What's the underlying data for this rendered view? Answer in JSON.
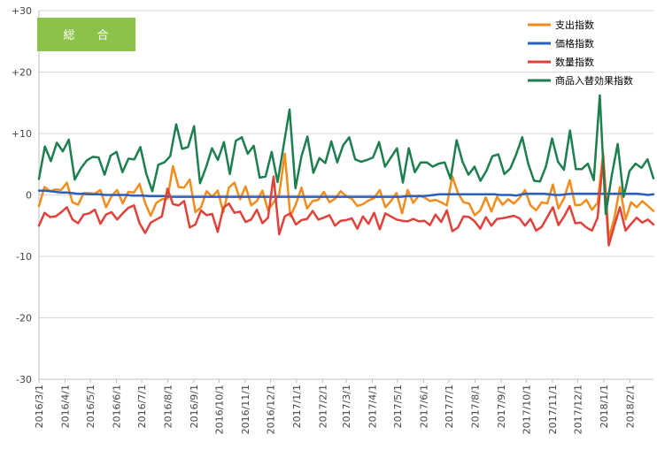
{
  "chart_data": {
    "type": "line",
    "badge": "総　合",
    "ylim": [
      -30,
      30
    ],
    "y_ticks": [
      {
        "value": 30,
        "label": "+30"
      },
      {
        "value": 20,
        "label": "+20"
      },
      {
        "value": 10,
        "label": "+10"
      },
      {
        "value": 0,
        "label": "0"
      },
      {
        "value": -10,
        "label": "-10"
      },
      {
        "value": -20,
        "label": "-20"
      },
      {
        "value": -30,
        "label": "-30"
      }
    ],
    "x_tick_labels": [
      "2016/3/1",
      "2016/4/1",
      "2016/5/1",
      "2016/6/1",
      "2016/7/1",
      "2016/8/1",
      "2016/9/1",
      "2016/10/1",
      "2016/11/1",
      "2016/12/1",
      "2017/1/1",
      "2017/2/1",
      "2017/3/1",
      "2017/4/1",
      "2017/5/1",
      "2017/6/1",
      "2017/7/1",
      "2017/8/1",
      "2017/9/1",
      "2017/10/1",
      "2017/11/1",
      "2017/12/1",
      "2018/1/1",
      "2018/2/1"
    ],
    "x_start": "2016/3/1",
    "x_end": "2018/3/1",
    "grid": true,
    "legend_position": "top-right",
    "series": [
      {
        "name": "支出指数",
        "color": "#F28C1C",
        "values": [
          -1.8,
          1.3,
          0.6,
          0.9,
          0.8,
          2.0,
          -1.2,
          -1.6,
          0.3,
          0.3,
          0.2,
          0.8,
          -2.0,
          -0.2,
          0.8,
          -1.4,
          0.5,
          0.4,
          1.8,
          -1.3,
          -3.4,
          -1.3,
          -0.7,
          -0.6,
          4.7,
          1.3,
          1.2,
          2.5,
          -2.8,
          -2.0,
          0.6,
          -0.3,
          0.7,
          -2.8,
          1.2,
          2.0,
          -0.7,
          1.4,
          -1.7,
          -1.0,
          0.7,
          -2.5,
          -1.2,
          0.1,
          6.7,
          -3.5,
          -1.5,
          1.2,
          -2.2,
          -1.0,
          -0.8,
          0.5,
          -1.2,
          -0.6,
          0.6,
          -0.2,
          -0.6,
          -1.8,
          -1.5,
          -0.9,
          -0.5,
          0.8,
          -2.0,
          -1.0,
          0.3,
          -3.0,
          0.8,
          -1.3,
          -0.1,
          -0.4,
          -1.0,
          -0.8,
          -1.2,
          -1.7,
          3.0,
          0.3,
          -1.2,
          -1.4,
          -3.3,
          -2.5,
          -0.4,
          -2.7,
          -0.3,
          -1.6,
          -0.7,
          -1.4,
          -0.5,
          0.8,
          -1.7,
          -2.5,
          -1.2,
          -1.4,
          1.7,
          -2.2,
          -0.5,
          2.4,
          -1.7,
          -1.6,
          -0.8,
          -2.4,
          -1.3,
          6.8,
          -7.0,
          -3.8,
          1.3,
          -4.0,
          -1.2,
          -2.0,
          -1.0,
          -1.8,
          -2.6
        ]
      },
      {
        "name": "価格指数",
        "color": "#2B5FBF",
        "values": [
          0.7,
          0.7,
          0.6,
          0.5,
          0.4,
          0.4,
          0.3,
          0.2,
          0.2,
          0.1,
          0.1,
          0.1,
          0.0,
          0.0,
          0.0,
          0.0,
          0.0,
          -0.1,
          -0.1,
          -0.1,
          -0.2,
          -0.2,
          -0.2,
          -0.2,
          -0.3,
          -0.3,
          -0.3,
          -0.3,
          -0.3,
          -0.3,
          -0.3,
          -0.3,
          -0.3,
          -0.3,
          -0.3,
          -0.3,
          -0.3,
          -0.3,
          -0.3,
          -0.3,
          -0.3,
          -0.3,
          -0.3,
          -0.3,
          -0.3,
          -0.3,
          -0.3,
          -0.3,
          -0.3,
          -0.3,
          -0.3,
          -0.3,
          -0.3,
          -0.3,
          -0.3,
          -0.3,
          -0.3,
          -0.3,
          -0.3,
          -0.3,
          -0.3,
          -0.3,
          -0.3,
          -0.3,
          -0.3,
          -0.3,
          -0.3,
          -0.2,
          -0.2,
          -0.2,
          -0.2,
          -0.1,
          0.0,
          0.1,
          0.1,
          0.1,
          0.1,
          0.1,
          0.1,
          0.1,
          0.1,
          0.1,
          0.1,
          0.1,
          0.0,
          0.0,
          0.0,
          -0.1,
          0.1,
          0.2,
          0.2,
          0.2,
          0.2,
          0.1,
          0.0,
          0.0,
          0.1,
          0.2,
          0.2,
          0.2,
          0.2,
          0.2,
          0.2,
          0.2,
          0.2,
          0.2,
          0.2,
          0.2,
          0.2,
          0.2,
          0.1,
          0.0,
          0.1
        ]
      },
      {
        "name": "数量指数",
        "color": "#E0413A",
        "values": [
          -5.0,
          -2.9,
          -3.6,
          -3.5,
          -2.8,
          -2.0,
          -4.0,
          -4.6,
          -3.2,
          -3.0,
          -2.4,
          -4.7,
          -3.2,
          -2.8,
          -4.0,
          -3.0,
          -2.1,
          -1.7,
          -4.6,
          -6.2,
          -4.5,
          -4.0,
          -3.5,
          1.0,
          -1.5,
          -1.7,
          -1.0,
          -5.3,
          -4.8,
          -2.5,
          -3.3,
          -3.1,
          -6.0,
          -2.1,
          -1.4,
          -2.9,
          -2.7,
          -4.4,
          -4.0,
          -2.4,
          -4.6,
          -3.7,
          3.0,
          -6.4,
          -3.5,
          -3.0,
          -4.8,
          -4.1,
          -3.9,
          -2.6,
          -4.0,
          -3.7,
          -3.3,
          -5.0,
          -4.2,
          -4.1,
          -3.8,
          -5.5,
          -3.5,
          -4.7,
          -2.9,
          -5.6,
          -3.0,
          -3.5,
          -4.0,
          -4.2,
          -4.3,
          -3.9,
          -4.3,
          -4.2,
          -4.9,
          -3.2,
          -4.4,
          -2.5,
          -5.9,
          -5.3,
          -3.5,
          -3.6,
          -4.3,
          -5.5,
          -3.6,
          -5.0,
          -3.9,
          -3.8,
          -3.6,
          -3.4,
          -3.8,
          -5.0,
          -3.9,
          -5.8,
          -5.2,
          -3.6,
          -2.0,
          -4.9,
          -3.5,
          -1.8,
          -4.6,
          -4.5,
          -5.3,
          -5.8,
          -3.7,
          6.0,
          -8.2,
          -5.0,
          -2.0,
          -5.8,
          -4.7,
          -3.7,
          -4.5,
          -4.0,
          -4.8
        ]
      },
      {
        "name": "商品入替効果指数",
        "color": "#1E7F4E",
        "values": [
          2.6,
          7.9,
          5.5,
          8.5,
          7.1,
          9.0,
          2.5,
          4.3,
          5.6,
          6.2,
          6.1,
          3.3,
          6.4,
          7.0,
          3.7,
          5.9,
          5.8,
          7.8,
          3.4,
          0.6,
          4.9,
          5.3,
          6.3,
          11.5,
          7.5,
          7.8,
          11.2,
          1.9,
          4.5,
          7.6,
          5.7,
          8.6,
          3.4,
          8.8,
          9.4,
          6.7,
          8.0,
          2.8,
          3.0,
          7.0,
          2.1,
          8.0,
          13.9,
          1.1,
          6.3,
          9.5,
          3.6,
          6.0,
          5.2,
          8.7,
          5.3,
          8.1,
          9.4,
          5.8,
          5.4,
          5.7,
          6.1,
          8.6,
          4.6,
          6.1,
          7.6,
          2.0,
          7.6,
          3.7,
          5.3,
          5.3,
          4.6,
          5.1,
          5.3,
          2.6,
          8.9,
          5.4,
          3.3,
          4.6,
          2.3,
          3.9,
          6.3,
          6.6,
          3.4,
          4.3,
          6.6,
          9.4,
          5.1,
          2.3,
          2.2,
          4.7,
          9.2,
          5.4,
          4.1,
          10.5,
          4.2,
          4.2,
          5.1,
          2.4,
          16.2,
          -3.1,
          3.1,
          8.3,
          -0.3,
          3.9,
          5.1,
          4.4,
          5.8,
          2.7
        ]
      }
    ]
  }
}
